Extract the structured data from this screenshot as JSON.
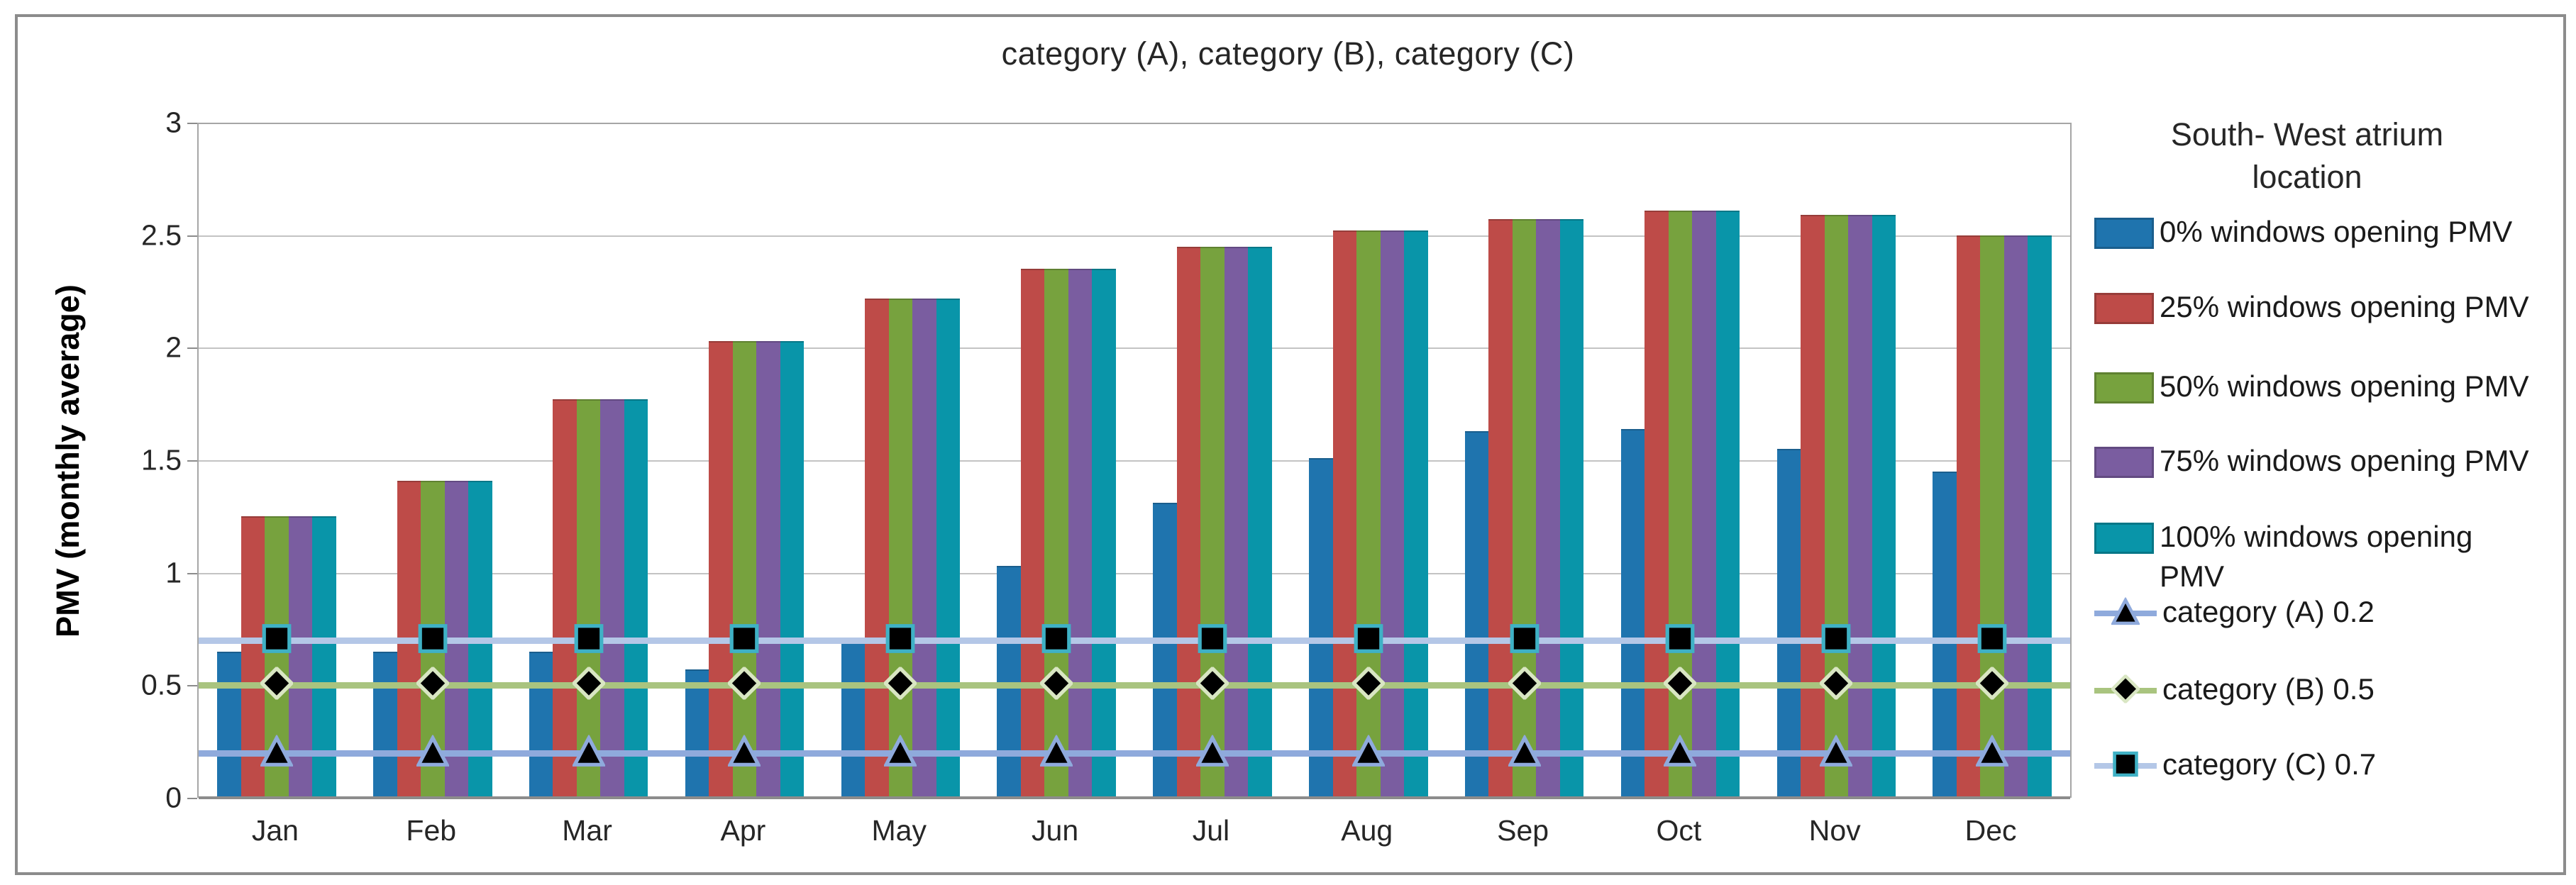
{
  "title": "category (A), category (B), category (C)",
  "y_axis": {
    "title": "PMV (monthly average)",
    "tick_labels": [
      "3",
      "2.5",
      "2",
      "1.5",
      "1",
      "0.5",
      "0"
    ]
  },
  "legend": {
    "title_line1": "South- West atrium",
    "title_line2": "location"
  },
  "chart_data": {
    "type": "bar",
    "title": "category (A), category (B), category (C)",
    "xlabel": "",
    "ylabel": "PMV (monthly average)",
    "ylim": [
      0,
      3
    ],
    "ytick_step": 0.5,
    "grid": true,
    "legend_position": "right",
    "legend_title": "South- West atrium location",
    "categories": [
      "Jan",
      "Feb",
      "Mar",
      "Apr",
      "May",
      "Jun",
      "Jul",
      "Aug",
      "Sep",
      "Oct",
      "Nov",
      "Dec"
    ],
    "series": [
      {
        "name": "0% windows opening PMV",
        "color": "#1F74AE",
        "border": "#1A5E8D",
        "values": [
          0.65,
          0.65,
          0.65,
          0.57,
          0.69,
          1.03,
          1.31,
          1.51,
          1.63,
          1.64,
          1.55,
          1.45
        ]
      },
      {
        "name": "25% windows opening PMV",
        "color": "#BE4B48",
        "border": "#973C39",
        "values": [
          1.25,
          1.41,
          1.77,
          2.03,
          2.22,
          2.35,
          2.45,
          2.52,
          2.57,
          2.61,
          2.59,
          2.5
        ]
      },
      {
        "name": "50% windows opening PMV",
        "color": "#77A23E",
        "border": "#5F8131",
        "values": [
          1.25,
          1.41,
          1.77,
          2.03,
          2.22,
          2.35,
          2.45,
          2.52,
          2.57,
          2.61,
          2.59,
          2.5
        ]
      },
      {
        "name": "75% windows opening PMV",
        "color": "#7A5DA0",
        "border": "#624A81",
        "values": [
          1.25,
          1.41,
          1.77,
          2.03,
          2.22,
          2.35,
          2.45,
          2.52,
          2.57,
          2.61,
          2.59,
          2.5
        ]
      },
      {
        "name": "100% windows opening PMV",
        "color": "#0995A9",
        "border": "#077787",
        "values": [
          1.25,
          1.41,
          1.77,
          2.03,
          2.22,
          2.35,
          2.45,
          2.52,
          2.57,
          2.61,
          2.59,
          2.5
        ]
      }
    ],
    "lines": [
      {
        "name": "category  (A) 0.2",
        "value": 0.2,
        "color": "#8FAADC",
        "marker": "triangle",
        "marker_fill": "#000000",
        "marker_border": "#8FAADC"
      },
      {
        "name": "category  (B) 0.5",
        "value": 0.5,
        "color": "#A9C47F",
        "marker": "diamond",
        "marker_fill": "#000000",
        "marker_border": "#D9E6C3"
      },
      {
        "name": "category  (C) 0.7",
        "value": 0.7,
        "color": "#B4C7E7",
        "marker": "square",
        "marker_fill": "#000000",
        "marker_border": "#3FB1C5"
      }
    ]
  }
}
